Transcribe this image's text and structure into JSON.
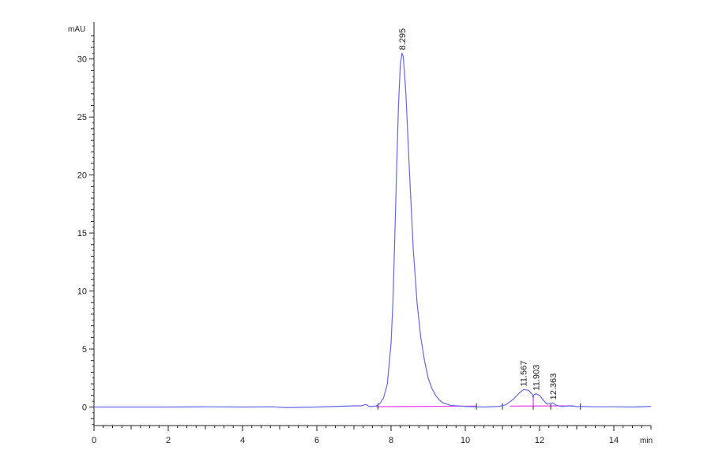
{
  "chart_data": {
    "type": "line",
    "title": "",
    "xlabel": "",
    "ylabel": "",
    "x_unit": "min",
    "y_unit": "mAU",
    "xlim": [
      0,
      15
    ],
    "ylim": [
      -1.6,
      32.5
    ],
    "x_ticks": [
      0,
      2,
      4,
      6,
      8,
      10,
      12,
      14
    ],
    "y_ticks": [
      0,
      5,
      10,
      15,
      20,
      25,
      30
    ],
    "grid": false,
    "colors": {
      "signal": "#6666ee",
      "baseline": "#ee33ee",
      "axis": "#222222",
      "text": "#222222"
    },
    "series": [
      {
        "color": "#6666ee",
        "x": [
          0,
          1,
          2,
          3,
          4,
          4.8,
          5.2,
          6,
          7,
          7.2,
          7.3,
          7.35,
          7.4,
          7.5,
          7.6,
          7.7,
          7.8,
          7.9,
          8.0,
          8.05,
          8.1,
          8.15,
          8.2,
          8.25,
          8.295,
          8.33,
          8.4,
          8.5,
          8.6,
          8.7,
          8.8,
          8.9,
          9.0,
          9.1,
          9.2,
          9.3,
          9.4,
          9.6,
          10.0,
          10.5,
          10.9,
          11.1,
          11.3,
          11.45,
          11.567,
          11.7,
          11.8,
          11.83,
          11.85,
          11.903,
          12.0,
          12.1,
          12.2,
          12.3,
          12.363,
          12.45,
          12.6,
          12.8,
          13.0,
          13.5,
          14.0,
          14.5,
          15.0
        ],
        "y": [
          0,
          0,
          0,
          0.02,
          0,
          0.02,
          -0.05,
          0,
          0.1,
          0.1,
          0.2,
          0.2,
          0.05,
          0.05,
          0.1,
          0.3,
          0.8,
          2.0,
          5.5,
          9.0,
          14.5,
          20.5,
          26.0,
          29.5,
          30.5,
          30.2,
          27.0,
          20.0,
          13.5,
          9.0,
          6.0,
          4.0,
          2.5,
          1.6,
          1.0,
          0.6,
          0.35,
          0.15,
          0.05,
          0,
          0.05,
          0.2,
          0.7,
          1.2,
          1.5,
          1.45,
          1.1,
          0.8,
          1.05,
          1.15,
          1.0,
          0.6,
          0.25,
          0.3,
          0.35,
          0.15,
          0.05,
          0.1,
          0.05,
          0.02,
          0.02,
          0,
          0.05
        ]
      }
    ],
    "baselines": [
      {
        "x": [
          7.6,
          10.3
        ],
        "y": [
          0.03,
          0.08
        ]
      },
      {
        "x": [
          11.2,
          12.9
        ],
        "y": [
          0.08,
          0.1
        ]
      }
    ],
    "integration_ticks": [
      7.65,
      10.3,
      11.0,
      11.83,
      12.3,
      13.1
    ],
    "peak_labels": [
      {
        "label": "8.295",
        "x": 8.295,
        "y": 30.5
      },
      {
        "label": "11.567",
        "x": 11.567,
        "y": 1.5
      },
      {
        "label": "11.903",
        "x": 11.903,
        "y": 1.15
      },
      {
        "label": "12.363",
        "x": 12.363,
        "y": 0.35
      }
    ]
  }
}
